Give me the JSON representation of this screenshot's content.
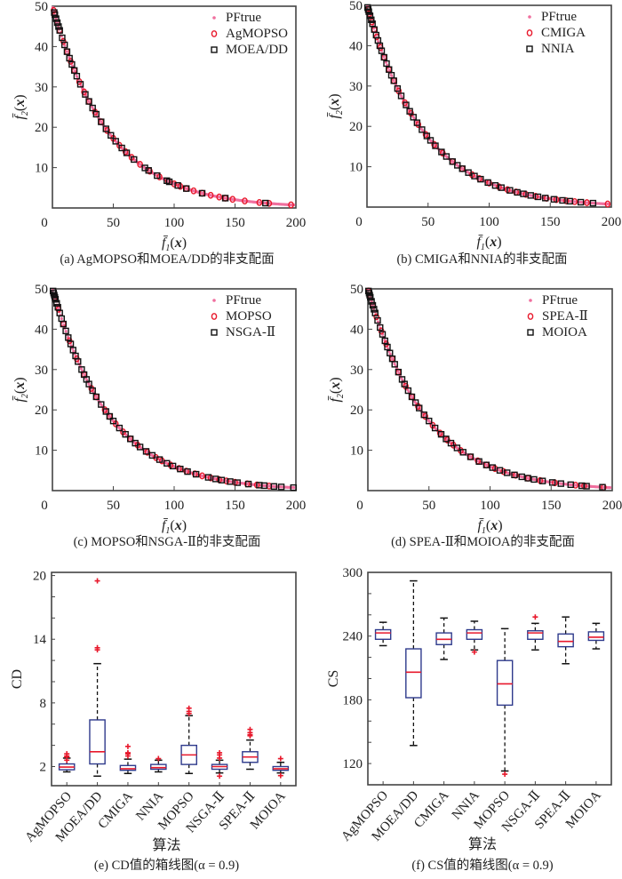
{
  "figure": {
    "colors": {
      "pf_true": "#f06f9e",
      "algo_a": "#e8192c",
      "algo_b": "#111111",
      "box": "#2e3a8c",
      "median": "#e8192c",
      "outlier": "#e8192c",
      "whisker": "#111111"
    }
  },
  "chart_data": [
    {
      "id": "a",
      "type": "scatter",
      "caption": "(a) AgMOPSO和MOEA/DD的非支配面",
      "xlabel": "f̄₁(x)",
      "ylabel": "f̄₂(x)",
      "xlim": [
        0,
        200
      ],
      "ylim": [
        0,
        50
      ],
      "xticks": [
        "0",
        "50",
        "100",
        "150",
        "200"
      ],
      "yticks": [
        "10",
        "20",
        "30",
        "40",
        "50"
      ],
      "legend_position": "top-right",
      "legend": [
        "PFtrue",
        "AgMOPSO",
        "MOEA/DD"
      ],
      "series": [
        {
          "name": "PFtrue",
          "marker": "dot",
          "x": "pareto_front_curve"
        },
        {
          "name": "AgMOPSO",
          "marker": "circle",
          "x": [
            1,
            2,
            4,
            6,
            9,
            12,
            15,
            18,
            22,
            26,
            30,
            35,
            40,
            45,
            50,
            55,
            60,
            65,
            72,
            80,
            88,
            95,
            100,
            105,
            110,
            116,
            123,
            130,
            137,
            142,
            148,
            158,
            170,
            178,
            196
          ]
        },
        {
          "name": "MOEA/DD",
          "marker": "square",
          "x": [
            1.5,
            2,
            3,
            4,
            5,
            6,
            8,
            10,
            12,
            14,
            16,
            18,
            20,
            23,
            27,
            30,
            33,
            36,
            40,
            44,
            48,
            52,
            57,
            61,
            67,
            76,
            79,
            86,
            94,
            96,
            103,
            110,
            123,
            142,
            175
          ]
        }
      ]
    },
    {
      "id": "b",
      "type": "scatter",
      "caption": "(b) CMIGA和NNIA的非支配面",
      "xlabel": "f̄₁(x)",
      "ylabel": "f̄₂(x)",
      "xlim": [
        0,
        200
      ],
      "ylim": [
        0,
        50
      ],
      "xticks": [
        "0",
        "50",
        "100",
        "150",
        "200"
      ],
      "yticks": [
        "10",
        "20",
        "30",
        "40",
        "50"
      ],
      "legend_position": "top-right",
      "legend": [
        "PFtrue",
        "CMIGA",
        "NNIA"
      ],
      "series": [
        {
          "name": "PFtrue",
          "marker": "dot",
          "x": "pareto_front_curve"
        },
        {
          "name": "CMIGA",
          "marker": "circle",
          "x": [
            1,
            2,
            4,
            6,
            8,
            11,
            14,
            18,
            22,
            26,
            31,
            36,
            42,
            48,
            55,
            62,
            70,
            78,
            86,
            92,
            100,
            108,
            115,
            122,
            130,
            138,
            147,
            155,
            163,
            170,
            180,
            197
          ]
        },
        {
          "name": "NNIA",
          "marker": "square",
          "x": [
            0.5,
            1,
            1.5,
            2.5,
            3.5,
            4.5,
            6,
            7.5,
            9,
            10.5,
            12,
            14,
            16,
            18,
            20,
            22,
            25,
            28,
            32,
            35,
            38,
            41,
            45,
            49,
            52,
            56,
            61,
            65,
            70,
            74,
            78,
            83,
            88,
            93,
            99,
            105,
            110,
            117,
            123,
            128,
            134,
            140,
            146,
            153,
            160,
            166,
            175,
            185
          ]
        }
      ]
    },
    {
      "id": "c",
      "type": "scatter",
      "caption": "(c) MOPSO和NSGA-Ⅱ的非支配面",
      "xlabel": "f̄₁(x)",
      "ylabel": "f̄₂(x)",
      "xlim": [
        0,
        200
      ],
      "ylim": [
        0,
        50
      ],
      "xticks": [
        "0",
        "50",
        "100",
        "150",
        "200"
      ],
      "yticks": [
        "10",
        "20",
        "30",
        "40",
        "50"
      ],
      "legend_position": "top-right",
      "legend": [
        "PFtrue",
        "MOPSO",
        "NSGA-Ⅱ"
      ],
      "series": [
        {
          "name": "PFtrue",
          "marker": "dot",
          "x": "pareto_front_curve"
        },
        {
          "name": "MOPSO",
          "marker": "circle",
          "x": [
            2,
            5,
            9,
            14,
            20,
            26,
            32,
            36,
            43,
            47,
            52,
            58,
            64,
            70,
            78,
            85,
            90,
            97,
            104,
            110,
            117,
            123,
            130,
            137,
            143,
            150,
            160,
            168,
            178
          ]
        },
        {
          "name": "NSGA-Ⅱ",
          "marker": "square",
          "x": [
            0.5,
            1,
            1.5,
            2,
            2.5,
            3.5,
            4.5,
            6,
            7.5,
            9,
            11,
            13,
            15,
            17,
            19,
            21,
            24,
            26,
            28,
            30,
            33,
            36,
            40,
            44,
            47,
            50,
            55,
            60,
            64,
            68,
            72,
            77,
            82,
            88,
            94,
            99,
            105,
            111,
            118,
            128,
            134,
            139,
            146,
            152,
            161,
            170,
            174,
            182,
            188,
            198
          ]
        }
      ]
    },
    {
      "id": "d",
      "type": "scatter",
      "caption": "(d) SPEA-Ⅱ和MOIOA的非支配面",
      "xlabel": "f̄₁(x)",
      "ylabel": "f̄₂(x)",
      "xlim": [
        0,
        200
      ],
      "ylim": [
        0,
        50
      ],
      "xticks": [
        "0",
        "50",
        "100",
        "150",
        "200"
      ],
      "yticks": [
        "10",
        "20",
        "30",
        "40",
        "50"
      ],
      "legend_position": "top-right",
      "legend": [
        "PFtrue",
        "SPEA-Ⅱ",
        "MOIOA"
      ],
      "series": [
        {
          "name": "PFtrue",
          "marker": "dot",
          "x": "pareto_front_curve"
        },
        {
          "name": "SPEA-Ⅱ",
          "marker": "circle",
          "x": [
            0.5,
            2,
            4,
            7,
            11,
            15,
            20,
            25,
            31,
            36,
            41,
            47,
            53,
            59,
            65,
            70,
            76,
            84,
            90,
            97,
            104,
            111,
            121,
            131,
            141,
            153,
            170,
            177,
            193
          ]
        },
        {
          "name": "MOIOA",
          "marker": "square",
          "x": [
            0.5,
            1,
            1.5,
            2,
            3,
            4,
            5,
            6,
            8,
            10,
            12,
            14,
            16,
            18,
            20,
            22,
            25,
            28,
            30,
            33,
            36,
            39,
            42,
            46,
            50,
            55,
            60,
            64,
            68,
            73,
            78,
            84,
            91,
            97,
            102,
            108,
            114,
            120,
            126,
            131,
            136,
            143,
            151,
            158,
            166,
            175,
            179,
            192
          ]
        }
      ]
    },
    {
      "id": "e",
      "type": "box",
      "caption": "(e) CD值的箱线图(α = 0.9)",
      "xlabel": "算法",
      "ylabel": "CD",
      "ylim": [
        0.2,
        20.3
      ],
      "yticks": [
        2,
        8,
        14,
        20
      ],
      "yminor_step": 2,
      "categories": [
        "AgMOPSO",
        "MOEA/DD",
        "CMIGA",
        "NNIA",
        "MOPSO",
        "NSGA-Ⅱ",
        "SPEA-Ⅱ",
        "MOIOA"
      ],
      "boxes": [
        {
          "whisker_low": 1.5,
          "q1": 1.7,
          "median": 1.95,
          "q3": 2.25,
          "whisker_high": 2.8,
          "outliers": [
            2.6,
            2.9,
            3.0,
            3.2
          ]
        },
        {
          "whisker_low": 1.1,
          "q1": 2.25,
          "median": 3.4,
          "q3": 6.4,
          "whisker_high": 11.7,
          "outliers": [
            13.0,
            13.2,
            19.5
          ]
        },
        {
          "whisker_low": 1.35,
          "q1": 1.65,
          "median": 1.8,
          "q3": 2.1,
          "whisker_high": 2.7,
          "outliers": [
            3.0,
            3.2,
            3.3,
            3.9
          ]
        },
        {
          "whisker_low": 1.5,
          "q1": 1.75,
          "median": 1.9,
          "q3": 2.2,
          "whisker_high": 2.6,
          "outliers": [
            2.75
          ]
        },
        {
          "whisker_low": 1.35,
          "q1": 2.2,
          "median": 3.1,
          "q3": 4.0,
          "whisker_high": 6.8,
          "outliers": [
            7.0,
            7.2,
            7.5
          ]
        },
        {
          "whisker_low": 1.4,
          "q1": 1.75,
          "median": 2.0,
          "q3": 2.2,
          "whisker_high": 2.6,
          "outliers": [
            1.1,
            2.8,
            3.1,
            3.3
          ]
        },
        {
          "whisker_low": 1.75,
          "q1": 2.4,
          "median": 2.9,
          "q3": 3.4,
          "whisker_high": 4.5,
          "outliers": [
            4.9,
            5.0,
            5.2,
            5.5
          ]
        },
        {
          "whisker_low": 1.4,
          "q1": 1.65,
          "median": 1.8,
          "q3": 2.0,
          "whisker_high": 2.4,
          "outliers": [
            1.15,
            2.75
          ]
        }
      ]
    },
    {
      "id": "f",
      "type": "box",
      "caption": "(f) CS值的箱线图(α = 0.9)",
      "xlabel": "算法",
      "ylabel": "CS",
      "ylim": [
        100,
        300
      ],
      "yticks": [
        120,
        180,
        240,
        300
      ],
      "yminor_step": 20,
      "categories": [
        "AgMOPSO",
        "MOEA/DD",
        "CMIGA",
        "NNIA",
        "MOPSO",
        "NSGA-Ⅱ",
        "SPEA-Ⅱ",
        "MOIOA"
      ],
      "boxes": [
        {
          "whisker_low": 231,
          "q1": 237,
          "median": 243,
          "q3": 246,
          "whisker_high": 253,
          "outliers": []
        },
        {
          "whisker_low": 137,
          "q1": 182,
          "median": 206,
          "q3": 228,
          "whisker_high": 292,
          "outliers": []
        },
        {
          "whisker_low": 218,
          "q1": 232,
          "median": 237,
          "q3": 243,
          "whisker_high": 257,
          "outliers": []
        },
        {
          "whisker_low": 227,
          "q1": 237,
          "median": 243,
          "q3": 246,
          "whisker_high": 254,
          "outliers": [
            225
          ]
        },
        {
          "whisker_low": 113,
          "q1": 175,
          "median": 195,
          "q3": 217,
          "whisker_high": 247,
          "outliers": [
            110
          ]
        },
        {
          "whisker_low": 227,
          "q1": 237,
          "median": 243,
          "q3": 245,
          "whisker_high": 252,
          "outliers": [
            258
          ]
        },
        {
          "whisker_low": 214,
          "q1": 230,
          "median": 235,
          "q3": 242,
          "whisker_high": 258,
          "outliers": []
        },
        {
          "whisker_low": 228,
          "q1": 236,
          "median": 239,
          "q3": 244,
          "whisker_high": 252,
          "outliers": []
        }
      ]
    }
  ]
}
